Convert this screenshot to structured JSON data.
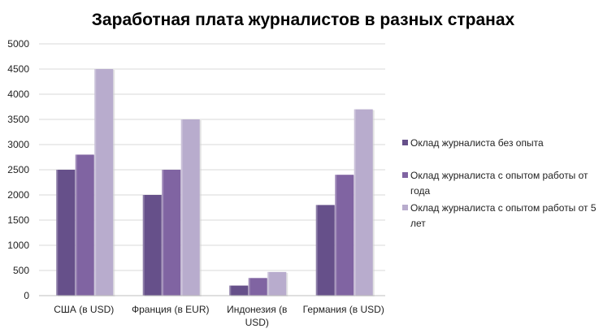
{
  "chart_data": {
    "type": "bar",
    "title": "Заработная плата журналистов в разных странах",
    "xlabel": "",
    "ylabel": "",
    "ylim": [
      0,
      5000
    ],
    "yticks": [
      0,
      500,
      1000,
      1500,
      2000,
      2500,
      3000,
      3500,
      4000,
      4500,
      5000
    ],
    "grid": true,
    "legend_position": "right",
    "categories": [
      [
        "США (в USD)"
      ],
      [
        "Франция (в EUR)"
      ],
      [
        "Индонезия  (в",
        "USD)"
      ],
      [
        "Германия (в USD)"
      ]
    ],
    "series": [
      {
        "name": [
          "Оклад журналиста без опыта"
        ],
        "color": "#66508a",
        "values": [
          2500,
          2000,
          200,
          1800
        ]
      },
      {
        "name": [
          "Оклад журналиста с опытом работы от",
          "года"
        ],
        "color": "#8064a2",
        "values": [
          2800,
          2500,
          350,
          2400
        ]
      },
      {
        "name": [
          "Оклад журналиста с опытом работы от 5",
          "лет"
        ],
        "color": "#b8accd",
        "values": [
          4500,
          3500,
          470,
          3700
        ]
      }
    ]
  }
}
